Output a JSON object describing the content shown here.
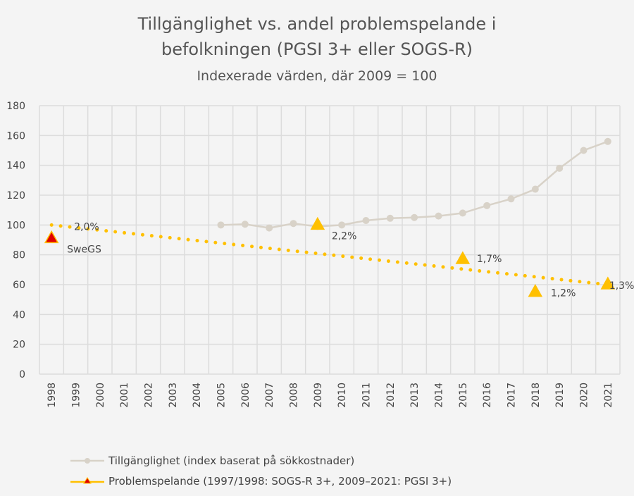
{
  "chart_data": {
    "type": "line",
    "title": "Tillgänglighet vs. andel problemspelande i befolkningen (PGSI 3+ eller SOGS-R)",
    "title_lines": [
      "Tillgänglighet vs. andel problemspelande i",
      "befolkningen (PGSI 3+ eller SOGS-R)"
    ],
    "subtitle": "Indexerade värden, där 2009 = 100",
    "categories": [
      "1998",
      "1999",
      "2000",
      "2001",
      "2002",
      "2003",
      "2004",
      "2005",
      "2006",
      "2007",
      "2008",
      "2009",
      "2010",
      "2011",
      "2012",
      "2013",
      "2014",
      "2015",
      "2016",
      "2017",
      "2018",
      "2019",
      "2020",
      "2021"
    ],
    "ylim": [
      0,
      180
    ],
    "yticks": [
      0,
      20,
      40,
      60,
      80,
      100,
      120,
      140,
      160,
      180
    ],
    "grid": true,
    "legend_position": "bottom",
    "series": [
      {
        "name": "Tillgänglighet (index baserat på sökkostnader)",
        "color": "#d8d2c8",
        "points": [
          [
            "2005",
            100
          ],
          [
            "2006",
            100.5
          ],
          [
            "2007",
            98
          ],
          [
            "2008",
            101
          ],
          [
            "2009",
            99
          ],
          [
            "2010",
            100
          ],
          [
            "2011",
            103
          ],
          [
            "2012",
            104.5
          ],
          [
            "2013",
            105
          ],
          [
            "2014",
            106
          ],
          [
            "2015",
            108
          ],
          [
            "2016",
            113
          ],
          [
            "2017",
            117.5
          ],
          [
            "2018",
            124
          ],
          [
            "2019",
            138
          ],
          [
            "2020",
            150
          ],
          [
            "2021",
            156
          ]
        ]
      },
      {
        "name": "Problemspelande (1997/1998: SOGS-R 3+, 2009–2021: PGSI 3+)",
        "color": "#ffc000",
        "marker": "triangle",
        "points": [
          {
            "x": "1998",
            "y": 91,
            "label": "2,0%",
            "note": "SweGS",
            "color": "#e00000"
          },
          {
            "x": "2009",
            "y": 100,
            "label": "2,2%"
          },
          {
            "x": "2015",
            "y": 77,
            "label": "1,7%"
          },
          {
            "x": "2018",
            "y": 55,
            "label": "1,2%"
          },
          {
            "x": "2021",
            "y": 60,
            "label": "1,3%"
          }
        ],
        "trendline": {
          "style": "dotted",
          "from": [
            "1998",
            100
          ],
          "to": [
            "2021",
            60
          ]
        }
      }
    ]
  }
}
